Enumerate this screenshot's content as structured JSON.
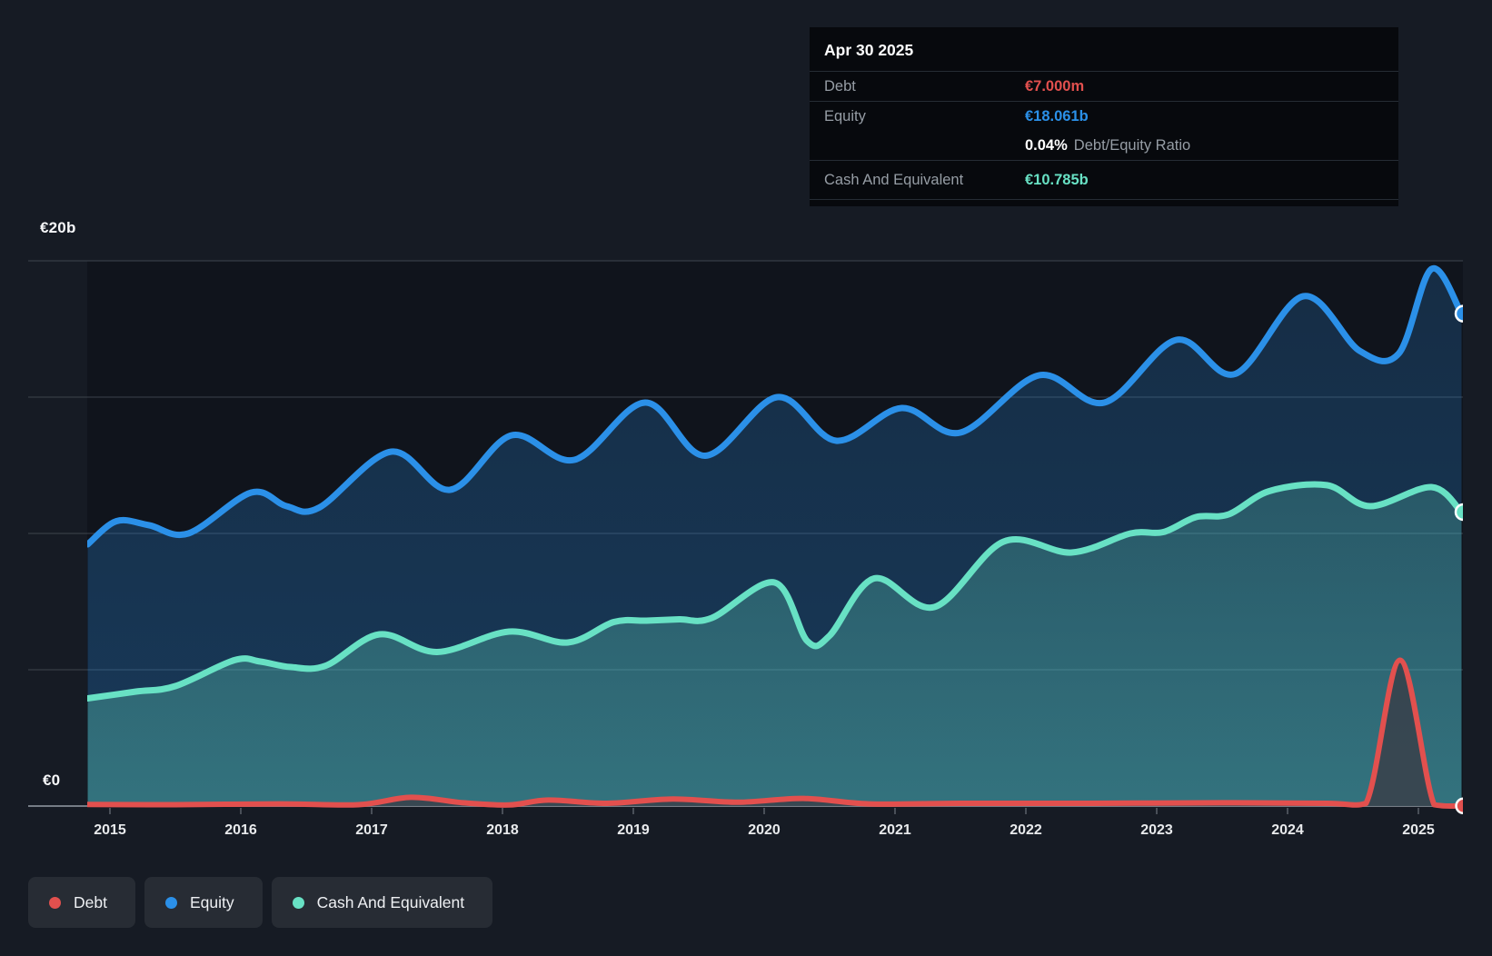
{
  "tooltip": {
    "date": "Apr 30 2025",
    "debt_label": "Debt",
    "debt_value": "€7.000m",
    "equity_label": "Equity",
    "equity_value": "€18.061b",
    "ratio_value": "0.04%",
    "ratio_label": "Debt/Equity Ratio",
    "cash_label": "Cash And Equivalent",
    "cash_value": "€10.785b"
  },
  "y_axis": {
    "top_label": "€20b",
    "bottom_label": "€0"
  },
  "x_axis": {
    "years": [
      "2015",
      "2016",
      "2017",
      "2018",
      "2019",
      "2020",
      "2021",
      "2022",
      "2023",
      "2024",
      "2025"
    ]
  },
  "legend": [
    {
      "label": "Debt",
      "color": "#e2504e"
    },
    {
      "label": "Equity",
      "color": "#2b90e8"
    },
    {
      "label": "Cash And Equivalent",
      "color": "#68e1c4"
    }
  ],
  "chart_data": {
    "type": "area",
    "title": "Debt to Equity history (hover tooltip shows Apr 30 2025)",
    "x_unit": "calendar year (decimal = fraction of year)",
    "y_unit": "EUR billions",
    "x_range": [
      2014.83,
      2025.34
    ],
    "ylim": [
      0,
      20
    ],
    "gridline_values_billions": [
      20,
      15,
      10,
      5,
      0
    ],
    "grid": true,
    "legend_position": "bottom-left",
    "series": [
      {
        "name": "Equity",
        "color": "#2b90e8",
        "points": [
          [
            2014.83,
            9.6
          ],
          [
            2015.05,
            10.45
          ],
          [
            2015.3,
            10.3
          ],
          [
            2015.6,
            10.0
          ],
          [
            2016.08,
            11.5
          ],
          [
            2016.35,
            11.0
          ],
          [
            2016.6,
            10.95
          ],
          [
            2017.15,
            13.0
          ],
          [
            2017.6,
            11.6
          ],
          [
            2018.07,
            13.6
          ],
          [
            2018.55,
            12.7
          ],
          [
            2019.09,
            14.8
          ],
          [
            2019.55,
            12.85
          ],
          [
            2020.1,
            15.0
          ],
          [
            2020.55,
            13.4
          ],
          [
            2021.05,
            14.6
          ],
          [
            2021.5,
            13.7
          ],
          [
            2022.1,
            15.8
          ],
          [
            2022.6,
            14.8
          ],
          [
            2023.15,
            17.1
          ],
          [
            2023.6,
            15.85
          ],
          [
            2024.12,
            18.7
          ],
          [
            2024.55,
            16.7
          ],
          [
            2024.85,
            16.6
          ],
          [
            2025.1,
            19.7
          ],
          [
            2025.33,
            18.061
          ]
        ],
        "end_value_label": "€18.061b"
      },
      {
        "name": "Cash And Equivalent",
        "color": "#68e1c4",
        "points": [
          [
            2014.83,
            3.95
          ],
          [
            2015.2,
            4.2
          ],
          [
            2015.5,
            4.4
          ],
          [
            2015.95,
            5.35
          ],
          [
            2016.15,
            5.3
          ],
          [
            2016.38,
            5.1
          ],
          [
            2016.65,
            5.15
          ],
          [
            2017.06,
            6.3
          ],
          [
            2017.5,
            5.65
          ],
          [
            2018.05,
            6.4
          ],
          [
            2018.5,
            6.0
          ],
          [
            2018.85,
            6.75
          ],
          [
            2019.1,
            6.8
          ],
          [
            2019.35,
            6.85
          ],
          [
            2019.6,
            6.9
          ],
          [
            2020.08,
            8.2
          ],
          [
            2020.33,
            6.05
          ],
          [
            2020.5,
            6.25
          ],
          [
            2020.84,
            8.35
          ],
          [
            2021.3,
            7.3
          ],
          [
            2021.83,
            9.7
          ],
          [
            2022.35,
            9.3
          ],
          [
            2022.8,
            10.0
          ],
          [
            2023.05,
            10.05
          ],
          [
            2023.3,
            10.6
          ],
          [
            2023.55,
            10.7
          ],
          [
            2023.86,
            11.55
          ],
          [
            2024.3,
            11.77
          ],
          [
            2024.63,
            11.0
          ],
          [
            2025.1,
            11.7
          ],
          [
            2025.33,
            10.785
          ]
        ],
        "end_value_label": "€10.785b"
      },
      {
        "name": "Debt",
        "color": "#e2504e",
        "points": [
          [
            2014.83,
            0.06
          ],
          [
            2015.5,
            0.05
          ],
          [
            2016.3,
            0.08
          ],
          [
            2016.9,
            0.05
          ],
          [
            2017.3,
            0.32
          ],
          [
            2017.7,
            0.12
          ],
          [
            2018.05,
            0.04
          ],
          [
            2018.35,
            0.22
          ],
          [
            2018.8,
            0.1
          ],
          [
            2019.3,
            0.26
          ],
          [
            2019.8,
            0.14
          ],
          [
            2020.3,
            0.28
          ],
          [
            2020.8,
            0.08
          ],
          [
            2021.5,
            0.1
          ],
          [
            2022.5,
            0.1
          ],
          [
            2023.5,
            0.12
          ],
          [
            2024.3,
            0.1
          ],
          [
            2024.6,
            0.1
          ],
          [
            2024.86,
            5.35
          ],
          [
            2025.12,
            0.05
          ],
          [
            2025.33,
            0.007
          ]
        ],
        "end_value_label": "€7.000m"
      }
    ]
  }
}
